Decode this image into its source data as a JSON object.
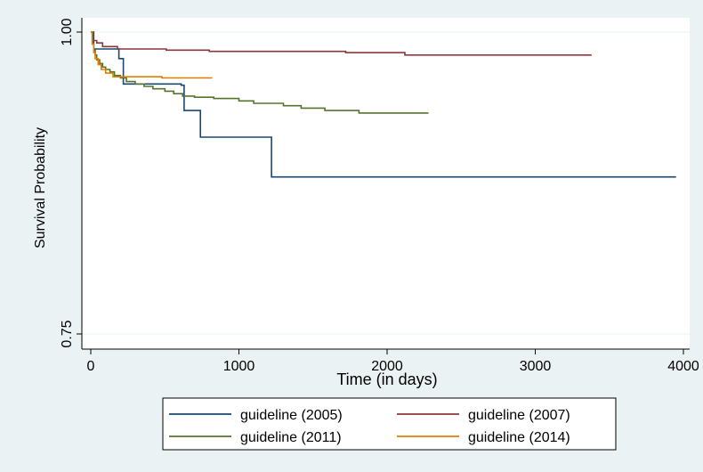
{
  "chart_data": {
    "type": "line",
    "step": true,
    "title": "",
    "xlabel": "Time (in days)",
    "ylabel": "Survival Probability",
    "xlim": [
      0,
      4000
    ],
    "ylim": [
      0.75,
      1.0
    ],
    "xticks": [
      0,
      1000,
      2000,
      3000,
      4000
    ],
    "xtick_labels": [
      "0",
      "1000",
      "2000",
      "3000",
      "4000"
    ],
    "yticks": [
      0.75,
      1.0
    ],
    "ytick_labels": [
      "0.75",
      "1.00"
    ],
    "grid": true,
    "legend_position": "bottom",
    "colors": {
      "background": "#eaf2f3",
      "plot_background": "#ffffff",
      "grid": "#eaf2f3"
    },
    "series": [
      {
        "name": "guideline (2005)",
        "color": "#1a476f",
        "x": [
          0,
          20,
          190,
          220,
          610,
          630,
          740,
          1220,
          3950
        ],
        "y": [
          1.0,
          0.986,
          0.978,
          0.957,
          0.956,
          0.935,
          0.913,
          0.88,
          0.88
        ]
      },
      {
        "name": "guideline (2007)",
        "color": "#90353b",
        "x": [
          0,
          10,
          40,
          80,
          180,
          510,
          800,
          1720,
          2120,
          3380
        ],
        "y": [
          1.0,
          0.993,
          0.991,
          0.988,
          0.986,
          0.985,
          0.984,
          0.983,
          0.981,
          0.981
        ]
      },
      {
        "name": "guideline (2011)",
        "color": "#55752f",
        "x": [
          0,
          10,
          20,
          30,
          40,
          60,
          80,
          100,
          130,
          160,
          200,
          240,
          300,
          360,
          420,
          500,
          560,
          620,
          700,
          830,
          1000,
          1100,
          1300,
          1420,
          1580,
          1810,
          2280
        ],
        "y": [
          1.0,
          0.99,
          0.985,
          0.981,
          0.977,
          0.974,
          0.971,
          0.969,
          0.967,
          0.964,
          0.962,
          0.959,
          0.957,
          0.955,
          0.953,
          0.951,
          0.949,
          0.947,
          0.946,
          0.945,
          0.943,
          0.941,
          0.939,
          0.937,
          0.935,
          0.933,
          0.933
        ]
      },
      {
        "name": "guideline (2014)",
        "color": "#e37e00",
        "x": [
          0,
          10,
          20,
          30,
          50,
          70,
          100,
          150,
          480,
          820
        ],
        "y": [
          1.0,
          0.99,
          0.983,
          0.978,
          0.973,
          0.969,
          0.966,
          0.963,
          0.962,
          0.962
        ]
      }
    ]
  }
}
